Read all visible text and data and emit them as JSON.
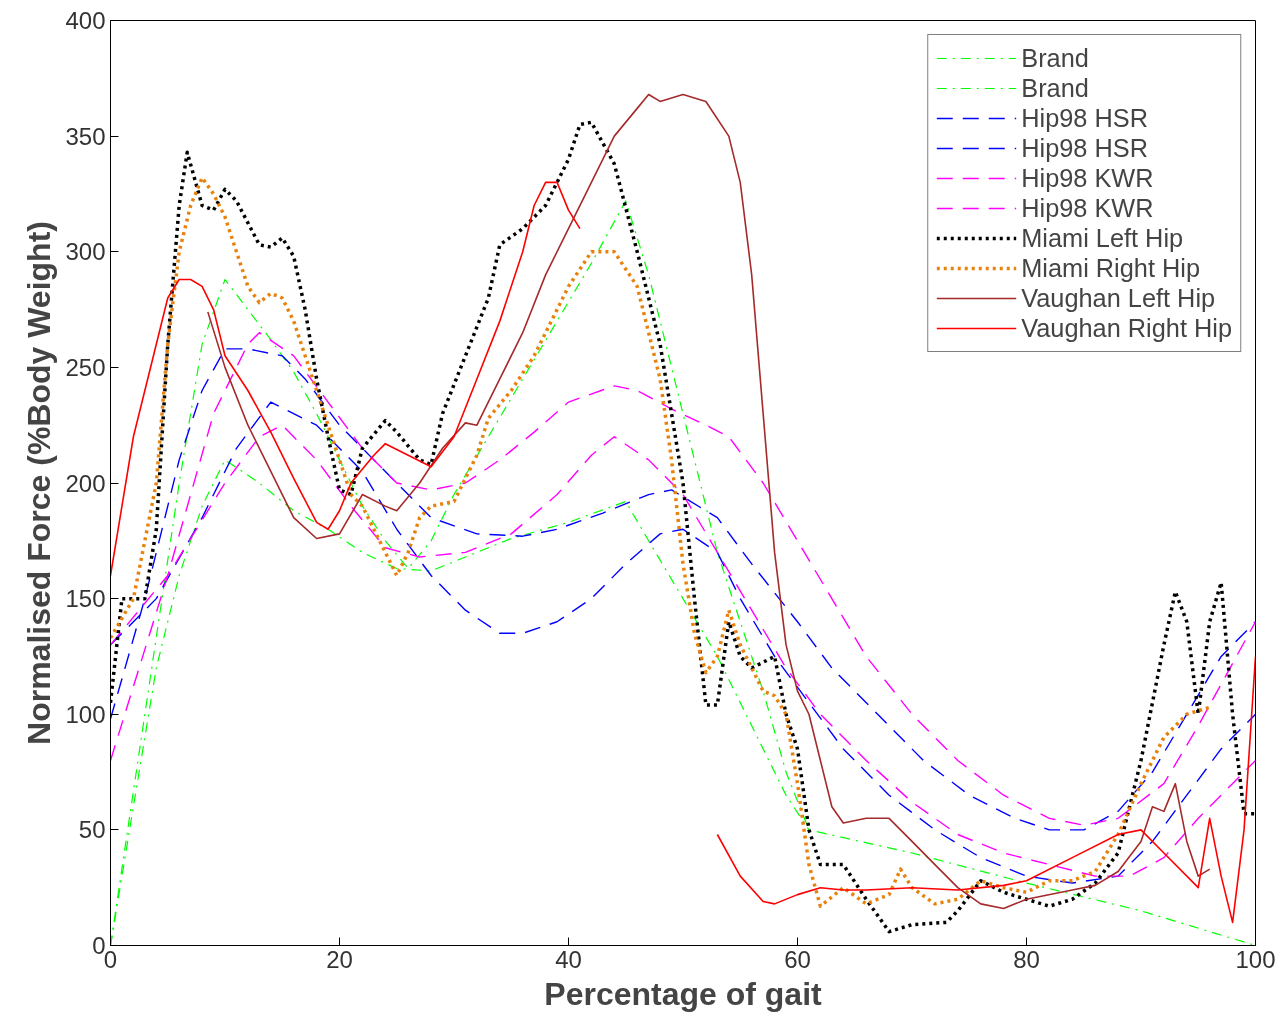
{
  "chart_data": {
    "type": "line",
    "xlabel": "Percentage of gait",
    "ylabel": "Normalised Force (%Body Weight)",
    "xlim": [
      0,
      100
    ],
    "ylim": [
      0,
      400
    ],
    "xticks": [
      0,
      20,
      40,
      60,
      80,
      100
    ],
    "yticks": [
      0,
      50,
      100,
      150,
      200,
      250,
      300,
      350,
      400
    ],
    "grid": false,
    "legend": "top right",
    "marker": "none",
    "series": [
      {
        "name": "Brand",
        "color": "#00ff00",
        "line_style": "dashdot",
        "x": [
          0,
          3,
          6,
          8,
          10,
          12,
          14,
          16,
          18,
          20,
          22,
          24,
          26,
          28,
          30,
          33,
          36,
          39,
          42,
          45,
          47,
          49,
          51,
          53,
          55,
          57,
          59,
          61,
          70,
          80,
          90,
          100
        ],
        "values": [
          0,
          100,
          200,
          260,
          288,
          275,
          262,
          248,
          230,
          210,
          190,
          175,
          163,
          175,
          195,
          220,
          245,
          270,
          295,
          322,
          290,
          250,
          210,
          170,
          140,
          110,
          75,
          50,
          40,
          27,
          15,
          0
        ]
      },
      {
        "name": "Brand",
        "color": "#00ff00",
        "line_style": "dashdot",
        "x": [
          0,
          2,
          4,
          6,
          8,
          10,
          13,
          16,
          19,
          22,
          25,
          28,
          31,
          35,
          40,
          45,
          47,
          50,
          53,
          56,
          59,
          61
        ],
        "values": [
          0,
          60,
          120,
          160,
          190,
          210,
          200,
          188,
          180,
          170,
          163,
          162,
          168,
          176,
          183,
          192,
          175,
          150,
          125,
          95,
          65,
          50
        ]
      },
      {
        "name": "Hip98 HSR",
        "color": "#0000ff",
        "line_style": "dashed",
        "x": [
          0,
          3,
          6,
          8,
          10,
          12,
          15,
          17,
          20,
          23,
          26,
          28,
          32,
          36,
          39,
          43,
          47,
          49,
          53,
          56,
          60,
          63,
          67,
          71,
          75,
          79,
          82,
          85,
          88,
          91,
          94,
          97,
          100
        ],
        "values": [
          98,
          150,
          210,
          240,
          258,
          258,
          255,
          245,
          225,
          210,
          195,
          185,
          178,
          177,
          180,
          187,
          195,
          197,
          185,
          165,
          140,
          120,
          100,
          80,
          65,
          55,
          50,
          50,
          58,
          75,
          100,
          125,
          140
        ]
      },
      {
        "name": "Hip98 HSR",
        "color": "#0000ff",
        "line_style": "dashed",
        "x": [
          0,
          4,
          8,
          11,
          14,
          18,
          22,
          25,
          28,
          31,
          34,
          36,
          39,
          42,
          45,
          48,
          50,
          53,
          55,
          58,
          61,
          64,
          68,
          72,
          76,
          80,
          84,
          88,
          91,
          94,
          97,
          100
        ],
        "values": [
          130,
          150,
          185,
          215,
          235,
          225,
          205,
          180,
          160,
          145,
          135,
          135,
          140,
          150,
          165,
          178,
          180,
          170,
          150,
          125,
          105,
          85,
          65,
          50,
          38,
          30,
          27,
          30,
          45,
          65,
          85,
          100
        ]
      },
      {
        "name": "Hip98 KWR",
        "color": "#ff00ff",
        "line_style": "dashed",
        "x": [
          0,
          5,
          9,
          12,
          13,
          16,
          19,
          22,
          25,
          28,
          31,
          34,
          37,
          40,
          44,
          46,
          49,
          52,
          54,
          57,
          60,
          63,
          66,
          70,
          74,
          78,
          82,
          85,
          88,
          92,
          95,
          100
        ],
        "values": [
          80,
          160,
          230,
          260,
          265,
          255,
          235,
          215,
          200,
          197,
          200,
          210,
          222,
          235,
          242,
          240,
          232,
          225,
          220,
          200,
          175,
          150,
          125,
          100,
          80,
          65,
          55,
          52,
          55,
          70,
          95,
          140
        ]
      },
      {
        "name": "Hip98 KWR",
        "color": "#ff00ff",
        "line_style": "dashed",
        "x": [
          0,
          5,
          10,
          13,
          15,
          18,
          21,
          24,
          27,
          31,
          35,
          39,
          42,
          44,
          47,
          50,
          53,
          56,
          59,
          62,
          66,
          70,
          74,
          78,
          82,
          86,
          89,
          92,
          95,
          100
        ],
        "values": [
          130,
          160,
          200,
          220,
          225,
          210,
          190,
          172,
          168,
          170,
          178,
          195,
          212,
          220,
          210,
          195,
          170,
          145,
          120,
          100,
          80,
          62,
          48,
          40,
          35,
          30,
          30,
          38,
          55,
          80
        ]
      },
      {
        "name": "Miami Left Hip",
        "color": "#000000",
        "line_style": "dotted",
        "x": [
          0,
          1,
          3,
          4,
          5,
          6,
          6.7,
          8,
          9,
          10,
          11,
          13,
          14,
          15,
          16,
          17,
          18,
          19,
          20,
          21,
          22,
          24,
          25,
          27,
          28,
          29,
          31,
          33,
          34,
          36,
          38,
          40,
          41,
          42,
          44,
          46,
          48,
          50,
          51,
          52,
          53,
          54,
          55,
          56,
          58,
          59,
          60,
          61,
          62,
          64,
          66,
          68,
          70,
          73,
          74,
          76,
          78,
          80,
          82,
          84,
          86,
          88,
          90,
          92,
          93,
          94,
          95,
          96,
          97,
          98,
          99,
          100
        ],
        "values": [
          105,
          150,
          150,
          180,
          260,
          320,
          343,
          320,
          318,
          327,
          322,
          303,
          302,
          306,
          298,
          275,
          245,
          220,
          197,
          195,
          215,
          227,
          222,
          210,
          208,
          230,
          255,
          280,
          303,
          310,
          320,
          340,
          355,
          356,
          338,
          300,
          260,
          200,
          150,
          104,
          104,
          140,
          125,
          120,
          125,
          100,
          85,
          50,
          35,
          35,
          20,
          6,
          9,
          10,
          15,
          28,
          23,
          20,
          17,
          20,
          27,
          40,
          80,
          130,
          153,
          140,
          100,
          140,
          157,
          100,
          57,
          57
        ]
      },
      {
        "name": "Miami Right Hip",
        "color": "#e8820c",
        "line_style": "dotted",
        "x": [
          0,
          2,
          4,
          5,
          6,
          7,
          8,
          9,
          10,
          11,
          12,
          13,
          14,
          15,
          16,
          17,
          18,
          19,
          20,
          21,
          22,
          23,
          24,
          25,
          26,
          27,
          28,
          30,
          32,
          33,
          35,
          37,
          38,
          40,
          42,
          44,
          46,
          48,
          49,
          50,
          51,
          52,
          53,
          54,
          55,
          56,
          57,
          58,
          59,
          60,
          61,
          62,
          64,
          66,
          68,
          69,
          70,
          72,
          74,
          76,
          78,
          80,
          82,
          84,
          86,
          88,
          90,
          92,
          94,
          96
        ],
        "values": [
          133,
          150,
          200,
          260,
          300,
          320,
          332,
          325,
          315,
          300,
          285,
          278,
          282,
          280,
          270,
          255,
          240,
          225,
          210,
          195,
          190,
          180,
          170,
          160,
          170,
          185,
          190,
          192,
          212,
          228,
          240,
          255,
          265,
          285,
          300,
          300,
          285,
          245,
          210,
          165,
          135,
          118,
          125,
          145,
          130,
          120,
          110,
          108,
          100,
          70,
          35,
          17,
          25,
          18,
          22,
          33,
          25,
          18,
          20,
          28,
          25,
          23,
          28,
          28,
          32,
          48,
          70,
          90,
          100,
          103
        ]
      },
      {
        "name": "Vaughan Left Hip",
        "color": "#a52a2a",
        "line_style": "solid",
        "x": [
          8.5,
          10,
          12,
          14,
          16,
          18,
          20,
          22,
          24,
          25,
          27,
          29,
          31,
          32,
          34,
          36,
          38,
          40,
          42,
          44,
          46,
          47,
          48,
          50,
          52,
          54,
          55,
          56,
          57,
          58,
          59,
          60,
          61,
          62,
          63,
          64,
          66,
          68,
          70,
          72,
          74,
          76,
          78,
          80,
          84,
          86,
          88,
          90,
          91,
          92,
          93,
          94,
          95,
          96
        ],
        "values": [
          274,
          250,
          225,
          205,
          185,
          176,
          178,
          195,
          190,
          188,
          200,
          215,
          226,
          225,
          245,
          265,
          290,
          310,
          330,
          350,
          362,
          368,
          365,
          368,
          365,
          350,
          330,
          290,
          230,
          170,
          130,
          110,
          100,
          80,
          60,
          53,
          55,
          55,
          45,
          35,
          25,
          18,
          16,
          20,
          24,
          26,
          32,
          45,
          60,
          58,
          70,
          45,
          30,
          33
        ]
      },
      {
        "name": "Vaughan Right Hip",
        "color": "#ff0000",
        "line_style": "solid",
        "x": [
          0,
          2,
          4,
          5,
          6,
          7,
          8,
          9,
          10,
          12,
          14,
          16,
          18,
          19,
          20,
          21,
          23,
          24,
          26,
          28,
          30,
          32,
          34,
          36,
          37,
          38,
          39,
          40,
          41,
          47,
          53,
          55,
          57,
          58,
          60,
          62,
          64,
          66,
          70,
          74,
          78,
          80,
          84,
          88,
          90,
          92,
          95,
          96,
          97,
          98,
          99,
          100
        ],
        "values": [
          160,
          220,
          260,
          280,
          288,
          288,
          285,
          275,
          255,
          240,
          222,
          202,
          183,
          180,
          188,
          200,
          212,
          217,
          212,
          207,
          220,
          245,
          270,
          300,
          320,
          330,
          330,
          318,
          310,
          null,
          48,
          30,
          19,
          18,
          22,
          25,
          24,
          24,
          25,
          24,
          26,
          28,
          38,
          48,
          50,
          40,
          25,
          55,
          30,
          10,
          50,
          125
        ]
      }
    ]
  }
}
